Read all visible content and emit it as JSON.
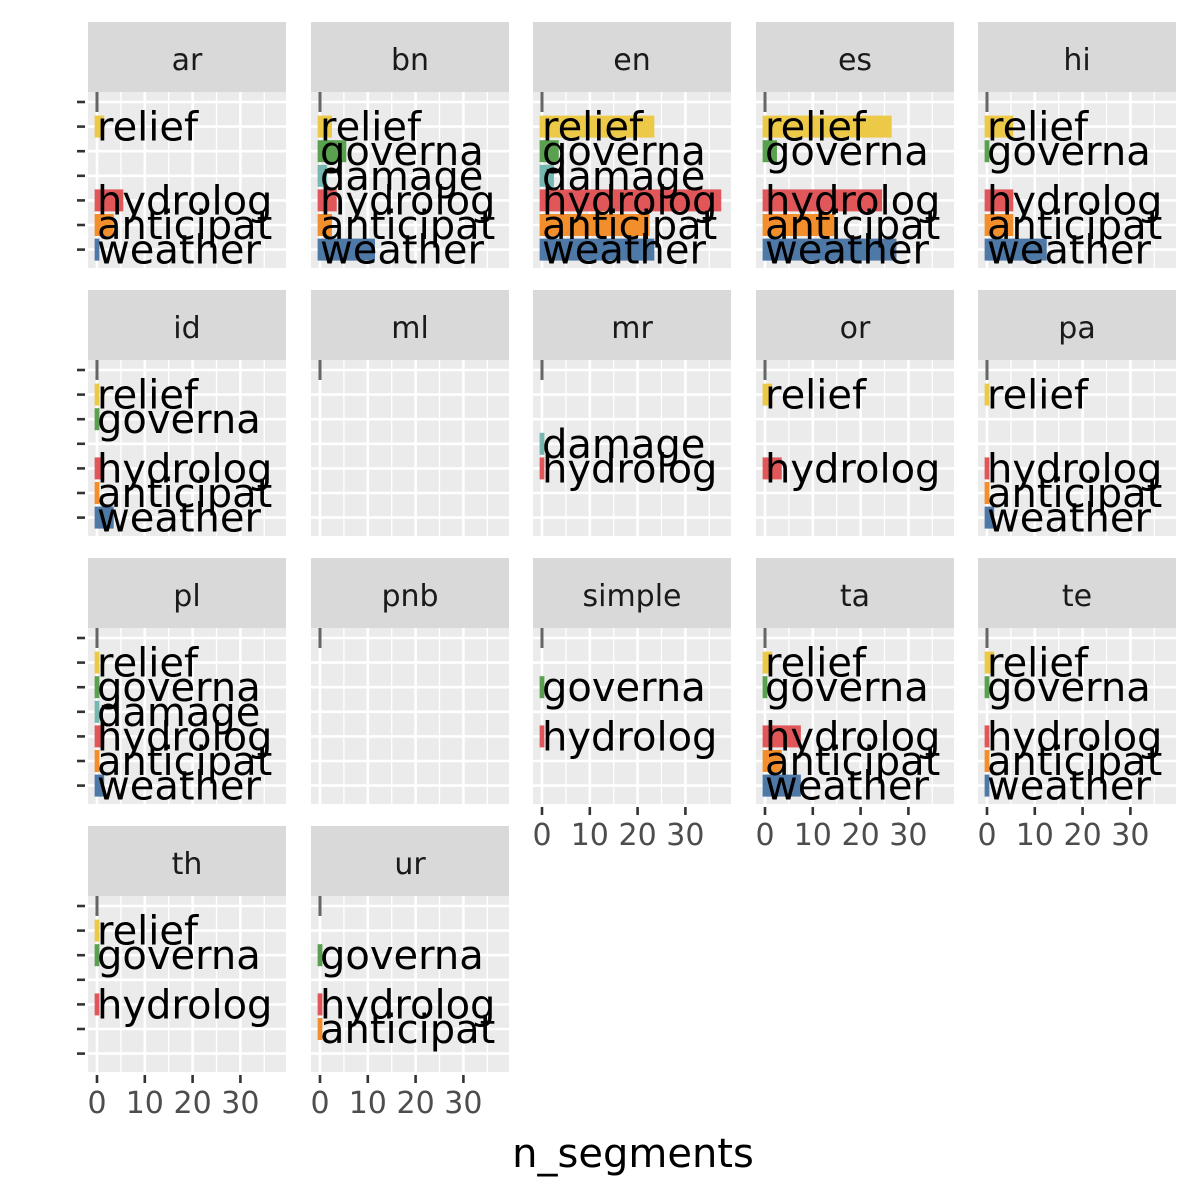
{
  "chart_data": {
    "type": "bar",
    "orientation": "horizontal",
    "faceted": true,
    "xlabel": "n_segments",
    "ylabel": "",
    "xlim": [
      -1,
      40
    ],
    "x_ticks": [
      0,
      10,
      20,
      30
    ],
    "x_tick_labels": [
      "0",
      "10",
      "20",
      "30"
    ],
    "grid": true,
    "categories": [
      "relief",
      "governance",
      "damage",
      "hydrological",
      "anticipatory",
      "weather"
    ],
    "category_label_text": {
      "relief": "relief",
      "governance": "governa",
      "damage": "damage",
      "hydrological": "hydrolog",
      "anticipatory": "anticipat",
      "weather": "weather"
    },
    "colors": {
      "relief": "#edc948",
      "governance": "#59a14f",
      "damage": "#76b7b2",
      "hydrological": "#e15759",
      "anticipatory": "#f28e2b",
      "weather": "#4e79a7",
      "panel_background": "#ebebeb",
      "strip_background": "#d9d9d9",
      "empty_marker": "#666666"
    },
    "panels": [
      {
        "name": "ar",
        "values": {
          "relief": 2,
          "hydrological": 6,
          "anticipatory": 4,
          "weather": 1
        }
      },
      {
        "name": "bn",
        "values": {
          "relief": 3,
          "governance": 6,
          "damage": 2,
          "hydrological": 4,
          "anticipatory": 3,
          "weather": 12
        }
      },
      {
        "name": "en",
        "values": {
          "relief": 24,
          "governance": 4,
          "damage": 3,
          "hydrological": 38,
          "anticipatory": 23,
          "weather": 24
        }
      },
      {
        "name": "es",
        "values": {
          "relief": 27,
          "governance": 3,
          "hydrological": 25,
          "anticipatory": 15,
          "weather": 28
        }
      },
      {
        "name": "hi",
        "values": {
          "relief": 6,
          "governance": 1,
          "hydrological": 6,
          "anticipatory": 6,
          "weather": 13
        }
      },
      {
        "name": "id",
        "values": {
          "relief": 1,
          "governance": 1,
          "hydrological": 2,
          "anticipatory": 1,
          "weather": 4
        }
      },
      {
        "name": "ml",
        "values": {}
      },
      {
        "name": "mr",
        "values": {
          "damage": 1,
          "hydrological": 1
        }
      },
      {
        "name": "or",
        "values": {
          "relief": 2,
          "hydrological": 4
        }
      },
      {
        "name": "pa",
        "values": {
          "relief": 1,
          "hydrological": 1,
          "anticipatory": 1,
          "weather": 2
        }
      },
      {
        "name": "pl",
        "values": {
          "relief": 1,
          "governance": 1,
          "damage": 1,
          "hydrological": 2,
          "anticipatory": 1,
          "weather": 2
        }
      },
      {
        "name": "pnb",
        "values": {}
      },
      {
        "name": "simple",
        "values": {
          "governance": 1,
          "hydrological": 1
        }
      },
      {
        "name": "ta",
        "values": {
          "relief": 2,
          "governance": 1,
          "hydrological": 8,
          "anticipatory": 4,
          "weather": 8
        }
      },
      {
        "name": "te",
        "values": {
          "relief": 2,
          "governance": 1,
          "hydrological": 1,
          "anticipatory": 1,
          "weather": 1
        }
      },
      {
        "name": "th",
        "values": {
          "relief": 1,
          "governance": 1,
          "hydrological": 1
        }
      },
      {
        "name": "ur",
        "values": {
          "governance": 1,
          "hydrological": 1,
          "anticipatory": 1
        }
      }
    ]
  }
}
